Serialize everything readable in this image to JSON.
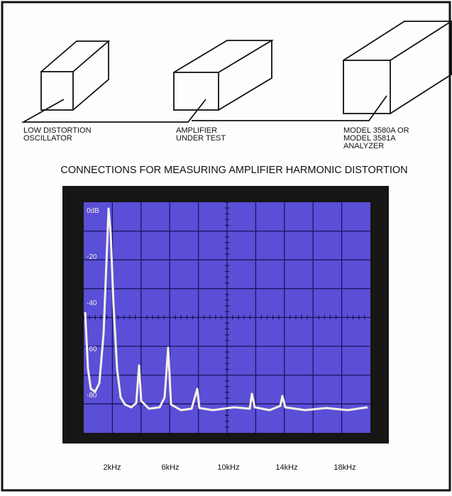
{
  "boxes": [
    {
      "label": [
        "LOW DISTORTION",
        "OSCILLATOR"
      ]
    },
    {
      "label": [
        "AMPLIFIER",
        "UNDER TEST"
      ]
    },
    {
      "label": [
        "MODEL 3580A OR",
        "MODEL 3581A",
        "ANALYZER"
      ]
    }
  ],
  "caption": "CONNECTIONS FOR MEASURING AMPLIFIER HARMONIC DISTORTION",
  "screen": {
    "y_labels": [
      "0dB",
      "-20",
      "-40",
      "-60",
      "-80"
    ],
    "x_labels": [
      "2kHz",
      "6kHz",
      "10kHz",
      "14kHz",
      "18kHz"
    ]
  }
}
